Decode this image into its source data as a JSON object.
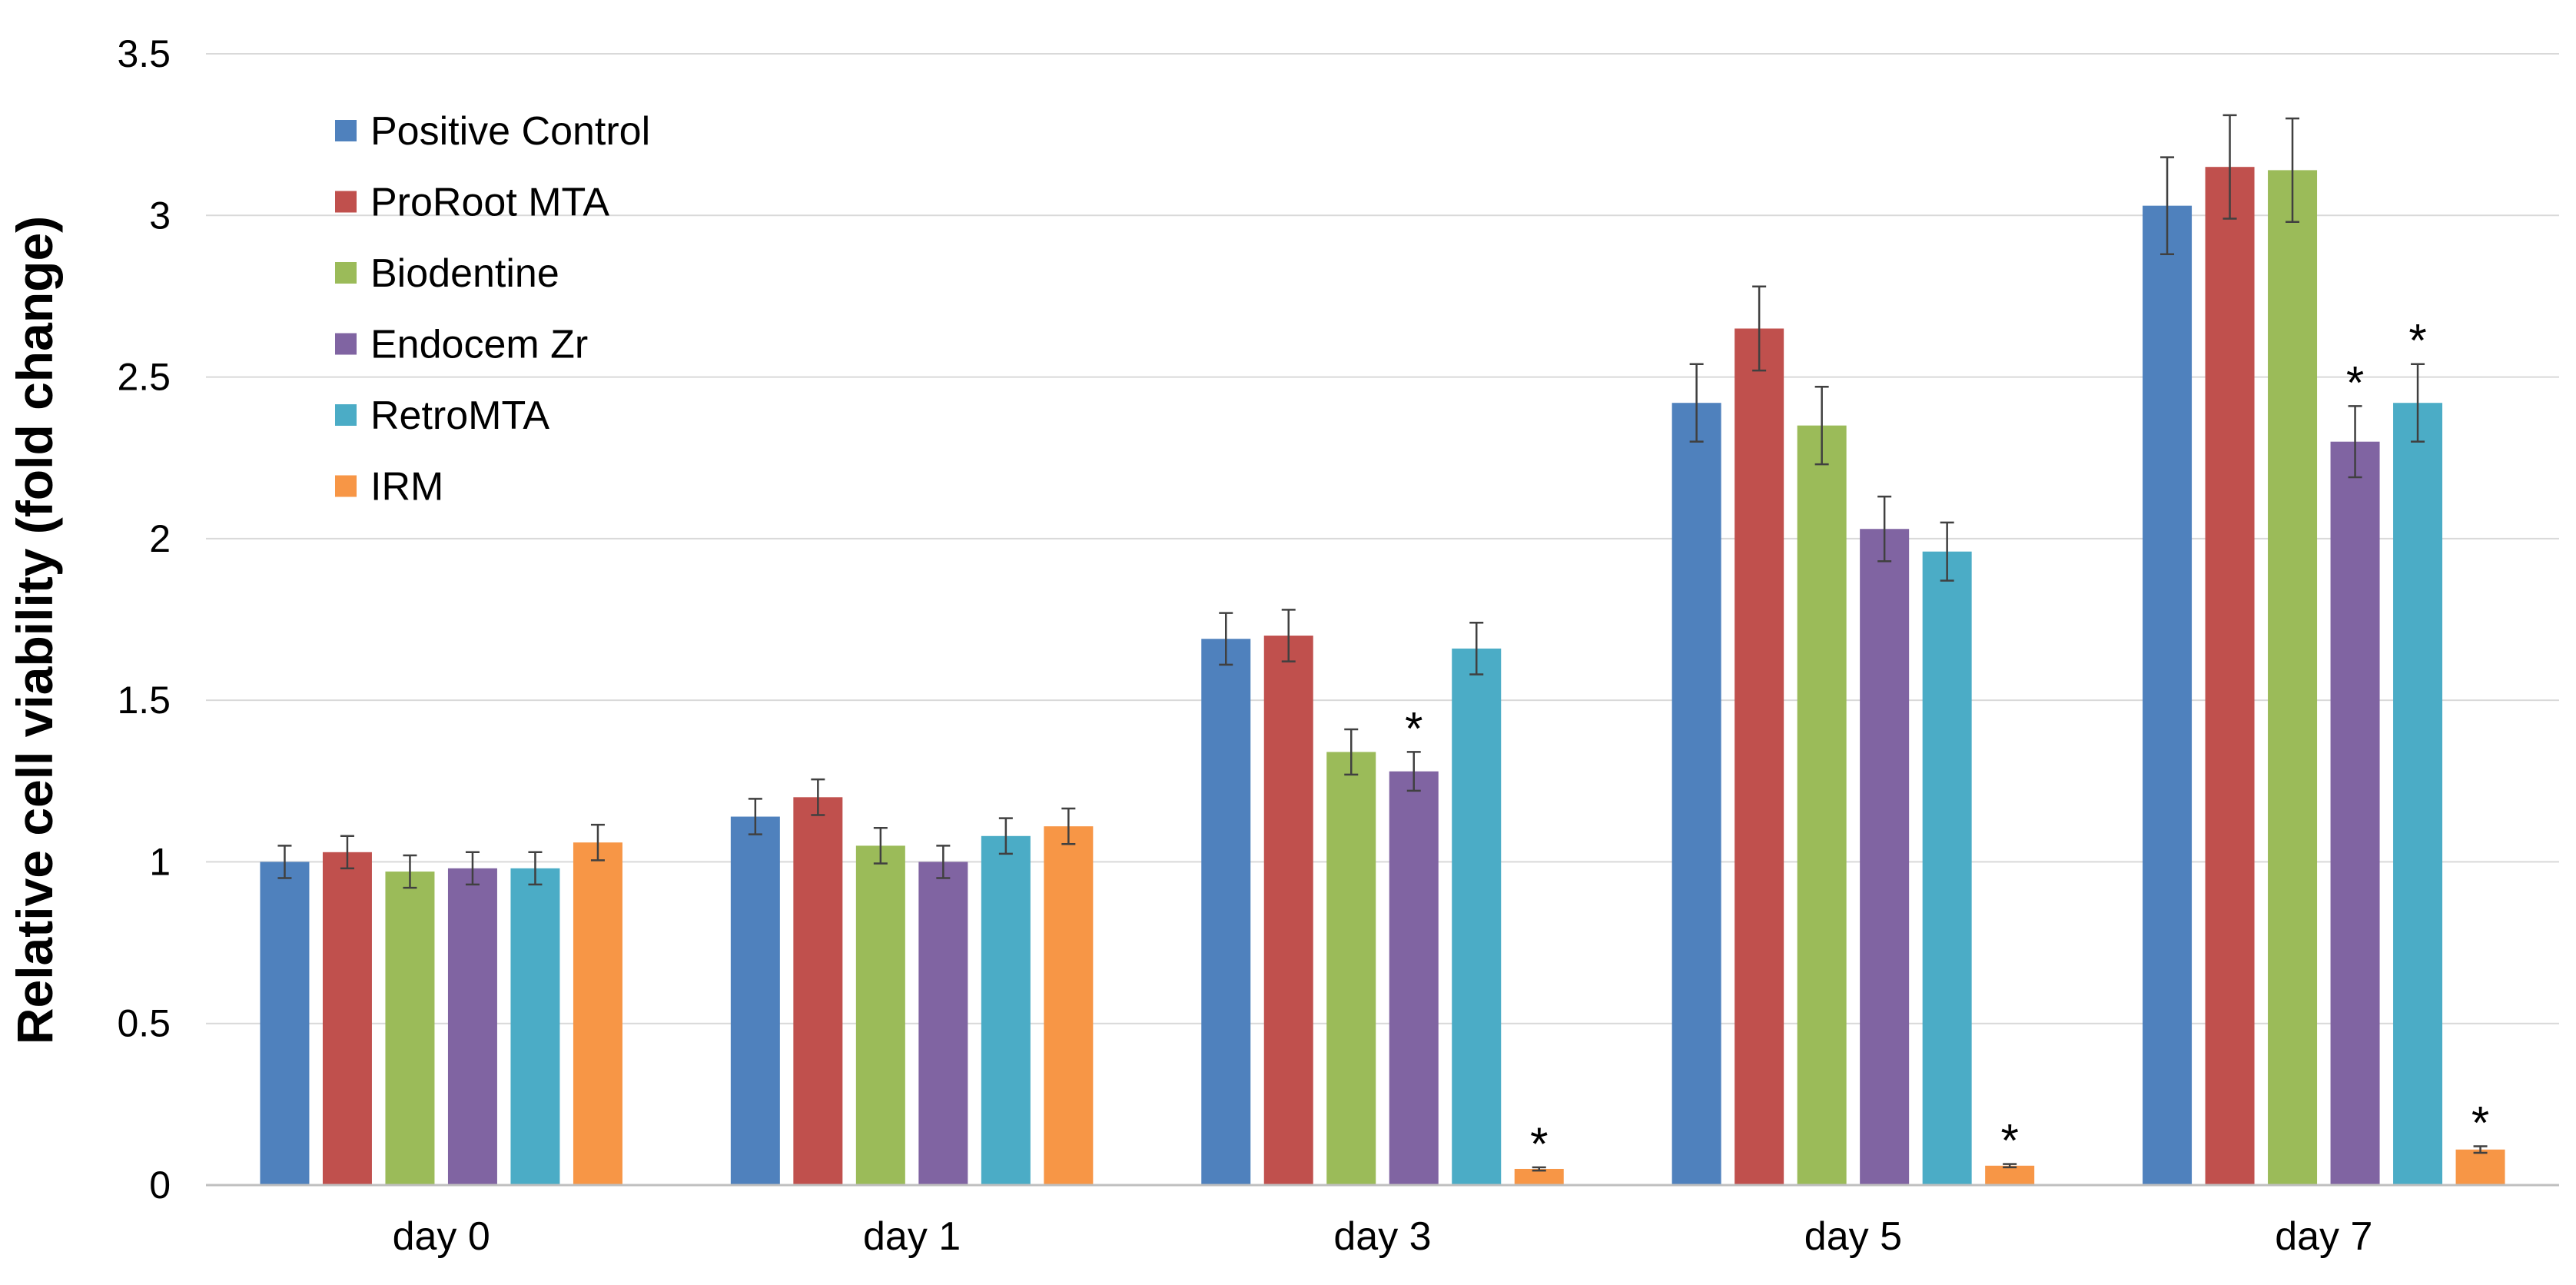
{
  "chart_data": {
    "type": "bar",
    "title": "",
    "xlabel": "",
    "ylabel": "Relative cell viability (fold change)",
    "ylim": [
      0,
      3.5
    ],
    "yticks": [
      0,
      0.5,
      1,
      1.5,
      2,
      2.5,
      3,
      3.5
    ],
    "ytick_labels": [
      "0",
      "0.5",
      "1",
      "1.5",
      "2",
      "2.5",
      "3",
      "3.5"
    ],
    "grid": true,
    "legend_position": "top-left",
    "categories": [
      "day 0",
      "day 1",
      "day 3",
      "day 5",
      "day 7"
    ],
    "series": [
      {
        "name": "Positive Control",
        "color": "#4f81bd",
        "values": [
          1.0,
          1.14,
          1.69,
          2.42,
          3.03
        ],
        "errors": [
          0.05,
          0.055,
          0.08,
          0.12,
          0.15
        ],
        "significant": [
          false,
          false,
          false,
          false,
          false
        ]
      },
      {
        "name": "ProRoot MTA",
        "color": "#c0504d",
        "values": [
          1.03,
          1.2,
          1.7,
          2.65,
          3.15
        ],
        "errors": [
          0.05,
          0.055,
          0.08,
          0.13,
          0.16
        ],
        "significant": [
          false,
          false,
          false,
          false,
          false
        ]
      },
      {
        "name": "Biodentine",
        "color": "#9bbb59",
        "values": [
          0.97,
          1.05,
          1.34,
          2.35,
          3.14
        ],
        "errors": [
          0.05,
          0.055,
          0.07,
          0.12,
          0.16
        ],
        "significant": [
          false,
          false,
          false,
          false,
          false
        ]
      },
      {
        "name": "Endocem Zr",
        "color": "#8064a2",
        "values": [
          0.98,
          1.0,
          1.28,
          2.03,
          2.3
        ],
        "errors": [
          0.05,
          0.05,
          0.06,
          0.1,
          0.11
        ],
        "significant": [
          false,
          false,
          true,
          false,
          true
        ]
      },
      {
        "name": "RetroMTA",
        "color": "#4bacc6",
        "values": [
          0.98,
          1.08,
          1.66,
          1.96,
          2.42
        ],
        "errors": [
          0.05,
          0.055,
          0.08,
          0.09,
          0.12
        ],
        "significant": [
          false,
          false,
          false,
          false,
          true
        ]
      },
      {
        "name": "IRM",
        "color": "#f79646",
        "values": [
          1.06,
          1.11,
          0.05,
          0.06,
          0.11
        ],
        "errors": [
          0.055,
          0.055,
          0.005,
          0.005,
          0.01
        ],
        "significant": [
          false,
          false,
          true,
          true,
          true
        ]
      }
    ],
    "significance_marker": "*",
    "colors": {
      "grid": "#d9d9d9",
      "axis": "#bfbfbf",
      "error_bar": "#404040"
    }
  }
}
